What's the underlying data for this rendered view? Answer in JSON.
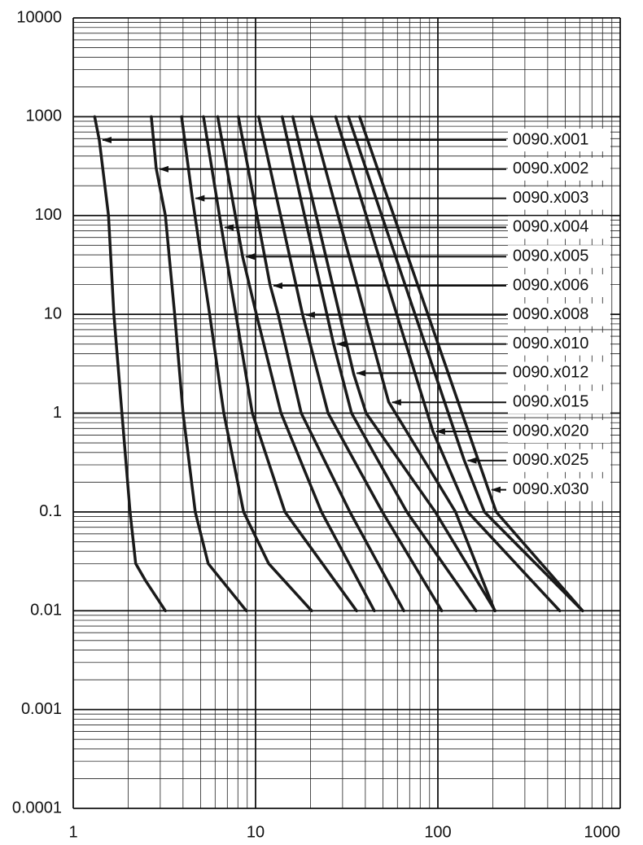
{
  "chart_data": {
    "type": "line",
    "xscale": "log",
    "yscale": "log",
    "grid": true,
    "minor_grid": true,
    "xlim": [
      1,
      1000
    ],
    "xticks": [
      1,
      10,
      100,
      1000
    ],
    "ylim": [
      0.0001,
      10000
    ],
    "yticks": [
      0.0001,
      0.001,
      0.01,
      0.1,
      1,
      10,
      100,
      1000,
      10000
    ],
    "series": [
      {
        "name": "0090.x001",
        "color": "#1a1a1a",
        "x": [
          1.31,
          1.39,
          1.56,
          1.67,
          1.85,
          2.05,
          2.2,
          2.5,
          3.2
        ],
        "values": [
          1000,
          580,
          100,
          10,
          1,
          0.1,
          0.03,
          0.02,
          0.01
        ]
      },
      {
        "name": "0090.x002",
        "color": "#1a1a1a",
        "x": [
          2.68,
          2.85,
          3.2,
          3.6,
          4.0,
          4.67,
          5.5,
          8.9
        ],
        "values": [
          1000,
          300,
          100,
          10,
          1,
          0.1,
          0.03,
          0.01
        ]
      },
      {
        "name": "0090.x003",
        "color": "#1a1a1a",
        "x": [
          3.93,
          4.5,
          5.6,
          6.7,
          8.6,
          11.8,
          20.3
        ],
        "values": [
          1000,
          150,
          10,
          1,
          0.1,
          0.03,
          0.01
        ]
      },
      {
        "name": "0090.x004",
        "color": "#1a1a1a",
        "x": [
          5.18,
          6.5,
          7.8,
          9.6,
          14.5,
          35.8
        ],
        "values": [
          1000,
          75,
          10,
          1,
          0.1,
          0.01
        ]
      },
      {
        "name": "0090.x005",
        "color": "#1a1a1a",
        "x": [
          6.2,
          8.5,
          10.1,
          13.8,
          23,
          44.8
        ],
        "values": [
          1000,
          38,
          10,
          1,
          0.1,
          0.01
        ]
      },
      {
        "name": "0090.x006",
        "color": "#1a1a1a",
        "x": [
          8.05,
          12,
          13.3,
          17.8,
          32.9,
          65
        ],
        "values": [
          1000,
          20,
          10,
          1,
          0.1,
          0.01
        ]
      },
      {
        "name": "0090.x008",
        "color": "#1a1a1a",
        "x": [
          10.4,
          18.1,
          25,
          49.6,
          105
        ],
        "values": [
          1000,
          10,
          1,
          0.1,
          0.01
        ]
      },
      {
        "name": "0090.x010",
        "color": "#1a1a1a",
        "x": [
          14,
          26.8,
          33.6,
          67.6,
          162
        ],
        "values": [
          1000,
          5,
          1,
          0.1,
          0.01
        ]
      },
      {
        "name": "0090.x012",
        "color": "#1a1a1a",
        "x": [
          16,
          34.5,
          40.4,
          96.8,
          206
        ],
        "values": [
          1000,
          2.5,
          1,
          0.1,
          0.01
        ]
      },
      {
        "name": "0090.x015",
        "color": "#1a1a1a",
        "x": [
          20.2,
          53.7,
          125,
          205
        ],
        "values": [
          1000,
          1.3,
          0.1,
          0.01
        ]
      },
      {
        "name": "0090.x020",
        "color": "#1a1a1a",
        "x": [
          27.5,
          94,
          146,
          466
        ],
        "values": [
          1000,
          0.65,
          0.1,
          0.01
        ]
      },
      {
        "name": "0090.x025",
        "color": "#1a1a1a",
        "x": [
          32.3,
          139,
          180,
          622
        ],
        "values": [
          1000,
          0.34,
          0.1,
          0.01
        ]
      },
      {
        "name": "0090.x030",
        "color": "#1a1a1a",
        "x": [
          37.2,
          189,
          209,
          622
        ],
        "values": [
          1000,
          0.17,
          0.1,
          0.01
        ]
      }
    ]
  }
}
